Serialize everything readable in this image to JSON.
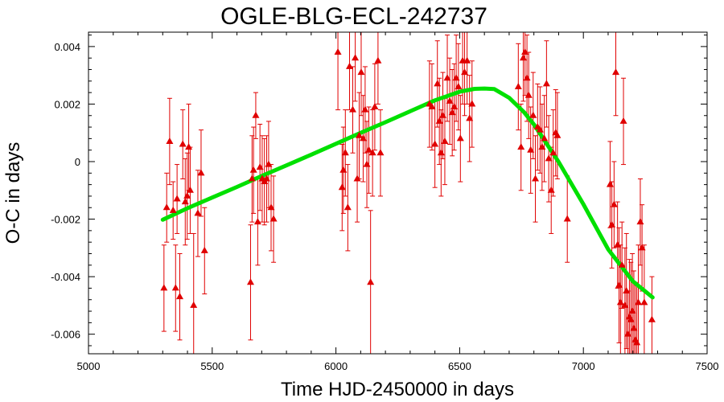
{
  "chart_data": {
    "type": "scatter",
    "title": "OGLE-BLG-ECL-242737",
    "xlabel": "Time HJD-2450000 in days",
    "ylabel": "O-C in days",
    "xlim": [
      5000,
      7500
    ],
    "ylim": [
      -0.00668,
      0.0045
    ],
    "x_ticks": [
      5000,
      5500,
      6000,
      6500,
      7000,
      7500
    ],
    "x_tick_labels": [
      "5000",
      "5500",
      "6000",
      "6500",
      "7000",
      "7500"
    ],
    "y_ticks": [
      -0.006,
      -0.004,
      -0.002,
      0,
      0.002,
      0.004
    ],
    "y_tick_labels": [
      "-0.006",
      "-0.004",
      "-0.002",
      "0",
      "0.002",
      "0.004"
    ],
    "grid": false,
    "colors": {
      "points": "#e00000",
      "fit": "#00e000",
      "axes": "#000000"
    },
    "series": [
      {
        "kind": "points_with_error_bars",
        "points": [
          {
            "x": 5305,
            "y": -0.0044,
            "err": 0.0015
          },
          {
            "x": 5316,
            "y": -0.0016,
            "err": 0.0012
          },
          {
            "x": 5328,
            "y": 0.0007,
            "err": 0.0015
          },
          {
            "x": 5342,
            "y": -0.0017,
            "err": 0.001
          },
          {
            "x": 5352,
            "y": -0.0044,
            "err": 0.0015
          },
          {
            "x": 5358,
            "y": -0.0013,
            "err": 0.0012
          },
          {
            "x": 5369,
            "y": -0.0047,
            "err": 0.0015
          },
          {
            "x": 5381,
            "y": 0.0006,
            "err": 0.0012
          },
          {
            "x": 5391,
            "y": -0.0014,
            "err": 0.0015
          },
          {
            "x": 5399,
            "y": -0.0012,
            "err": 0.0015
          },
          {
            "x": 5405,
            "y": 0.0005,
            "err": 0.0015
          },
          {
            "x": 5411,
            "y": -0.001,
            "err": 0.0015
          },
          {
            "x": 5425,
            "y": -0.005,
            "err": 0.0025
          },
          {
            "x": 5442,
            "y": -0.0018,
            "err": 0.0015
          },
          {
            "x": 5455,
            "y": -0.0004,
            "err": 0.0015
          },
          {
            "x": 5469,
            "y": -0.0031,
            "err": 0.0015
          },
          {
            "x": 5655,
            "y": -0.0042,
            "err": 0.002
          },
          {
            "x": 5661,
            "y": -0.0006,
            "err": 0.0015
          },
          {
            "x": 5667,
            "y": -0.0003,
            "err": 0.0015
          },
          {
            "x": 5676,
            "y": 0.0016,
            "err": 0.0008
          },
          {
            "x": 5684,
            "y": -0.0021,
            "err": 0.0015
          },
          {
            "x": 5693,
            "y": -0.0002,
            "err": 0.0015
          },
          {
            "x": 5702,
            "y": -0.0006,
            "err": 0.0015
          },
          {
            "x": 5711,
            "y": -0.0007,
            "err": 0.0015
          },
          {
            "x": 5720,
            "y": -0.0006,
            "err": 0.0015
          },
          {
            "x": 5728,
            "y": -0.0001,
            "err": 0.0015
          },
          {
            "x": 5738,
            "y": -0.0016,
            "err": 0.0015
          },
          {
            "x": 5748,
            "y": -0.002,
            "err": 0.0015
          },
          {
            "x": 6008,
            "y": 0.0038,
            "err": 0.002
          },
          {
            "x": 6025,
            "y": -0.0009,
            "err": 0.0015
          },
          {
            "x": 6030,
            "y": -0.0003,
            "err": 0.0015
          },
          {
            "x": 6038,
            "y": 0.0003,
            "err": 0.0015
          },
          {
            "x": 6048,
            "y": -0.0016,
            "err": 0.0015
          },
          {
            "x": 6055,
            "y": 0.0033,
            "err": 0.0015
          },
          {
            "x": 6068,
            "y": 0.0018,
            "err": 0.0015
          },
          {
            "x": 6078,
            "y": 0.0036,
            "err": 0.0015
          },
          {
            "x": 6086,
            "y": -0.0006,
            "err": 0.0015
          },
          {
            "x": 6094,
            "y": 0.0009,
            "err": 0.0015
          },
          {
            "x": 6102,
            "y": 0.0031,
            "err": 0.0015
          },
          {
            "x": 6110,
            "y": 0.0008,
            "err": 0.0015
          },
          {
            "x": 6118,
            "y": 0.0018,
            "err": 0.0015
          },
          {
            "x": 6125,
            "y": -0.0001,
            "err": 0.0015
          },
          {
            "x": 6133,
            "y": 0.0004,
            "err": 0.0015
          },
          {
            "x": 6140,
            "y": -0.0042,
            "err": 0.0025
          },
          {
            "x": 6148,
            "y": 0.0003,
            "err": 0.0015
          },
          {
            "x": 6157,
            "y": 0.0019,
            "err": 0.0015
          },
          {
            "x": 6170,
            "y": 0.0035,
            "err": 0.0015
          },
          {
            "x": 6180,
            "y": 0.0003,
            "err": 0.0015
          },
          {
            "x": 6378,
            "y": 0.002,
            "err": 0.0015
          },
          {
            "x": 6388,
            "y": 0.0019,
            "err": 0.0015
          },
          {
            "x": 6400,
            "y": 0.0006,
            "err": 0.0015
          },
          {
            "x": 6410,
            "y": 0.0027,
            "err": 0.0015
          },
          {
            "x": 6418,
            "y": 0.0014,
            "err": 0.0015
          },
          {
            "x": 6425,
            "y": 0.0003,
            "err": 0.0015
          },
          {
            "x": 6432,
            "y": 0.0016,
            "err": 0.0015
          },
          {
            "x": 6440,
            "y": 0.0007,
            "err": 0.0015
          },
          {
            "x": 6450,
            "y": 0.0029,
            "err": 0.0015
          },
          {
            "x": 6460,
            "y": 0.0021,
            "err": 0.0015
          },
          {
            "x": 6470,
            "y": 0.0017,
            "err": 0.0015
          },
          {
            "x": 6478,
            "y": 0.0019,
            "err": 0.0015
          },
          {
            "x": 6486,
            "y": 0.0029,
            "err": 0.0015
          },
          {
            "x": 6495,
            "y": 0.0026,
            "err": 0.0015
          },
          {
            "x": 6503,
            "y": 0.0008,
            "err": 0.0015
          },
          {
            "x": 6512,
            "y": 0.0035,
            "err": 0.0015
          },
          {
            "x": 6520,
            "y": 0.0031,
            "err": 0.0015
          },
          {
            "x": 6530,
            "y": 0.0035,
            "err": 0.0015
          },
          {
            "x": 6540,
            "y": 0.0015,
            "err": 0.0015
          },
          {
            "x": 6550,
            "y": 0.002,
            "err": 0.0015
          },
          {
            "x": 6737,
            "y": 0.0026,
            "err": 0.0015
          },
          {
            "x": 6748,
            "y": 0.0005,
            "err": 0.0015
          },
          {
            "x": 6757,
            "y": 0.0036,
            "err": 0.0015
          },
          {
            "x": 6764,
            "y": 0.0038,
            "err": 0.0015
          },
          {
            "x": 6772,
            "y": 0.0029,
            "err": 0.0015
          },
          {
            "x": 6779,
            "y": 0.0023,
            "err": 0.0015
          },
          {
            "x": 6787,
            "y": 0.0004,
            "err": 0.0015
          },
          {
            "x": 6797,
            "y": 0.0016,
            "err": 0.0015
          },
          {
            "x": 6806,
            "y": -0.0006,
            "err": 0.0015
          },
          {
            "x": 6815,
            "y": 0.0012,
            "err": 0.0015
          },
          {
            "x": 6825,
            "y": 0.0011,
            "err": 0.0015
          },
          {
            "x": 6833,
            "y": 0.0005,
            "err": 0.0015
          },
          {
            "x": 6842,
            "y": 0.0008,
            "err": 0.0015
          },
          {
            "x": 6851,
            "y": 0.0027,
            "err": 0.0015
          },
          {
            "x": 6860,
            "y": 0.0001,
            "err": 0.0015
          },
          {
            "x": 6870,
            "y": -0.001,
            "err": 0.0015
          },
          {
            "x": 6878,
            "y": 0.0003,
            "err": 0.0015
          },
          {
            "x": 6888,
            "y": 0.001,
            "err": 0.0015
          },
          {
            "x": 6895,
            "y": 0.0009,
            "err": 0.0015
          },
          {
            "x": 6935,
            "y": -0.002,
            "err": 0.0015
          },
          {
            "x": 7108,
            "y": -0.0008,
            "err": 0.0015
          },
          {
            "x": 7115,
            "y": -0.0022,
            "err": 0.0015
          },
          {
            "x": 7124,
            "y": -0.0015,
            "err": 0.0015
          },
          {
            "x": 7131,
            "y": 0.0031,
            "err": 0.0015
          },
          {
            "x": 7138,
            "y": -0.0029,
            "err": 0.0015
          },
          {
            "x": 7144,
            "y": -0.0043,
            "err": 0.002
          },
          {
            "x": 7150,
            "y": -0.0049,
            "err": 0.002
          },
          {
            "x": 7156,
            "y": -0.0036,
            "err": 0.0015
          },
          {
            "x": 7162,
            "y": 0.0014,
            "err": 0.0015
          },
          {
            "x": 7168,
            "y": -0.005,
            "err": 0.002
          },
          {
            "x": 7174,
            "y": -0.0045,
            "err": 0.002
          },
          {
            "x": 7180,
            "y": -0.006,
            "err": 0.0015
          },
          {
            "x": 7186,
            "y": -0.0054,
            "err": 0.002
          },
          {
            "x": 7192,
            "y": -0.0055,
            "err": 0.002
          },
          {
            "x": 7198,
            "y": -0.0052,
            "err": 0.002
          },
          {
            "x": 7204,
            "y": -0.0058,
            "err": 0.002
          },
          {
            "x": 7210,
            "y": -0.0062,
            "err": 0.002
          },
          {
            "x": 7216,
            "y": -0.0063,
            "err": 0.002
          },
          {
            "x": 7222,
            "y": -0.0049,
            "err": 0.002
          },
          {
            "x": 7230,
            "y": -0.0021,
            "err": 0.0015
          },
          {
            "x": 7237,
            "y": -0.003,
            "err": 0.0015
          },
          {
            "x": 7246,
            "y": -0.0049,
            "err": 0.002
          },
          {
            "x": 7277,
            "y": -0.0055,
            "err": 0.0015
          }
        ]
      },
      {
        "kind": "fit_curve",
        "x": [
          5300,
          5400,
          5500,
          5600,
          5700,
          5800,
          5900,
          6000,
          6100,
          6200,
          6300,
          6400,
          6500,
          6560,
          6600,
          6640,
          6700,
          6760,
          6800,
          6900,
          7000,
          7100,
          7200,
          7280
        ],
        "y": [
          -0.00202,
          -0.00162,
          -0.00125,
          -0.00088,
          -0.0005,
          -0.00013,
          0.00024,
          0.00062,
          0.001,
          0.00137,
          0.00175,
          0.00213,
          0.00243,
          0.00253,
          0.00254,
          0.00252,
          0.00222,
          0.00172,
          0.00129,
          -1e-05,
          -0.00148,
          -0.00305,
          -0.00416,
          -0.00472
        ]
      }
    ]
  }
}
